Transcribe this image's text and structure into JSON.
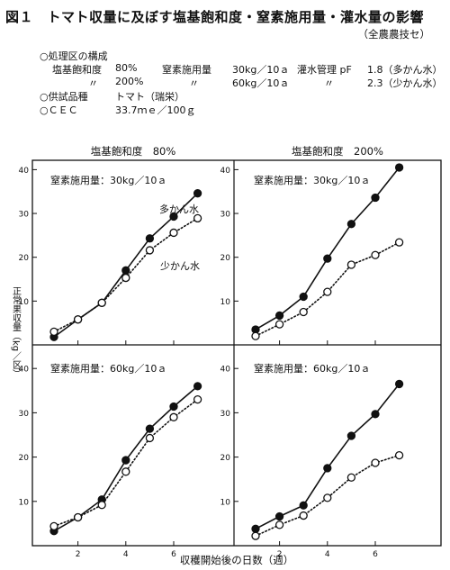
{
  "figure": {
    "title": "図１　トマト収量に及ぼす塩基飽和度・窒素施用量・灌水量の影響",
    "source": "（全農農技セ）",
    "conditions_header": "○処理区の構成",
    "rows": [
      [
        "塩基飽和度",
        "80%",
        "窒素施用量",
        "30kg／10ａ",
        "灌水管理 pF",
        "1.8（多かん水）"
      ],
      [
        "〃",
        "200%",
        "〃",
        "60kg／10ａ",
        "〃",
        "2.3（少かん水）"
      ]
    ],
    "variety_label": "○供試品種",
    "variety_value": "トマト（瑞栄）",
    "cec_label": "○ＣＥＣ",
    "cec_value": "33.7ｍｅ／100ｇ"
  },
  "chart_data": {
    "type": "line",
    "ylabel": "正常果収量（kg／区）",
    "xlabel": "収穫開始後の日数（週）",
    "x_ticks": [
      2,
      4,
      6
    ],
    "y_ticks": [
      10,
      20,
      30,
      40
    ],
    "xlim": [
      0.5,
      7.7
    ],
    "ylim": [
      0,
      42
    ],
    "series_labels": {
      "多かん水": "多かん水",
      "少かん水": "少かん水"
    },
    "panels": [
      {
        "title": "塩基飽和度　80%",
        "subtitle": "窒素施用量：30kg／10ａ",
        "series": [
          {
            "name": "多かん水",
            "marker": "filled",
            "line": "solid",
            "x": [
              1,
              2,
              3,
              4,
              5,
              6,
              7
            ],
            "y": [
              1.8,
              5.8,
              9.6,
              17.0,
              24.3,
              29.3,
              34.6
            ]
          },
          {
            "name": "少かん水",
            "marker": "open",
            "line": "dotted",
            "x": [
              1,
              2,
              3,
              4,
              5,
              6,
              7
            ],
            "y": [
              3.0,
              5.8,
              9.6,
              15.3,
              21.6,
              25.6,
              28.9
            ]
          }
        ]
      },
      {
        "title": "塩基飽和度　200%",
        "subtitle": "窒素施用量：30kg／10ａ",
        "series": [
          {
            "name": "多かん水",
            "marker": "filled",
            "line": "solid",
            "x": [
              1,
              2,
              3,
              4,
              5,
              6,
              7
            ],
            "y": [
              3.5,
              6.7,
              11.0,
              19.7,
              27.6,
              33.6,
              40.5
            ]
          },
          {
            "name": "少かん水",
            "marker": "open",
            "line": "dotted",
            "x": [
              1,
              2,
              3,
              4,
              5,
              6,
              7
            ],
            "y": [
              2.0,
              4.7,
              7.5,
              12.1,
              18.3,
              20.5,
              23.4
            ]
          }
        ]
      },
      {
        "title": "",
        "subtitle": "窒素施用量：60kg／10ａ",
        "series": [
          {
            "name": "多かん水",
            "marker": "filled",
            "line": "solid",
            "x": [
              1,
              2,
              3,
              4,
              5,
              6,
              7
            ],
            "y": [
              3.3,
              6.4,
              10.4,
              19.3,
              26.4,
              31.4,
              36.0
            ]
          },
          {
            "name": "少かん水",
            "marker": "open",
            "line": "dotted",
            "x": [
              1,
              2,
              3,
              4,
              5,
              6,
              7
            ],
            "y": [
              4.4,
              6.4,
              9.2,
              16.7,
              24.3,
              29.0,
              33.0
            ]
          }
        ]
      },
      {
        "title": "",
        "subtitle": "窒素施用量：60kg／10ａ",
        "series": [
          {
            "name": "多かん水",
            "marker": "filled",
            "line": "solid",
            "x": [
              1,
              2,
              3,
              4,
              5,
              6,
              7
            ],
            "y": [
              3.8,
              6.6,
              9.1,
              17.5,
              24.8,
              29.7,
              36.5
            ]
          },
          {
            "name": "少かん水",
            "marker": "open",
            "line": "dotted",
            "x": [
              1,
              2,
              3,
              4,
              5,
              6,
              7
            ],
            "y": [
              2.2,
              4.7,
              6.8,
              10.8,
              15.4,
              18.7,
              20.4
            ]
          }
        ]
      }
    ]
  }
}
